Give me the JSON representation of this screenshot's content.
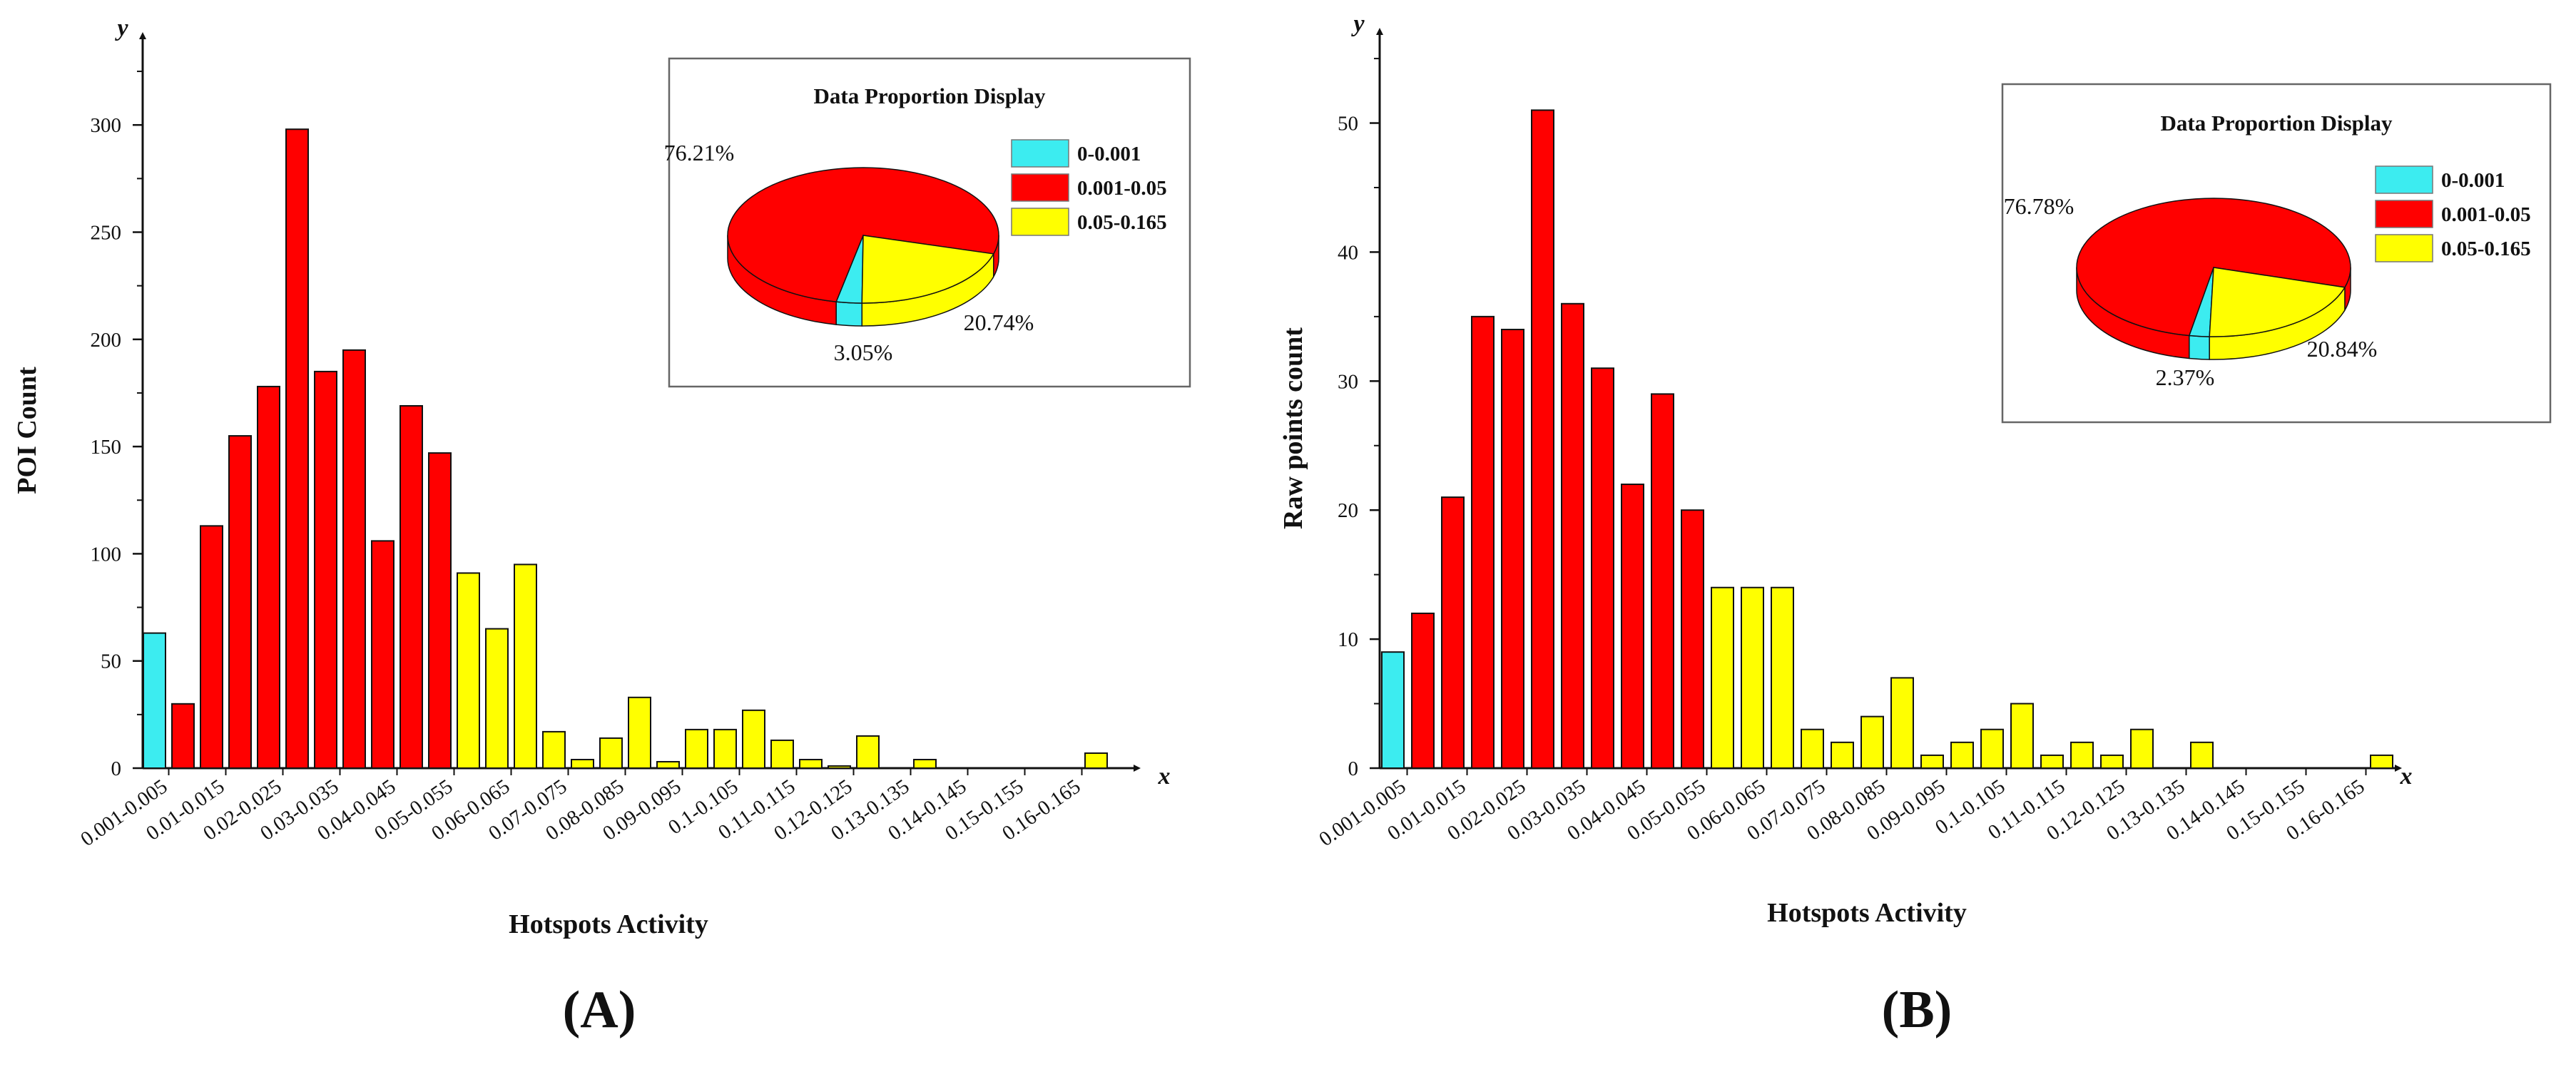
{
  "colors": {
    "range_low": "#3cecf0",
    "range_mid": "#ff0000",
    "range_high": "#ffff00",
    "axis": "#111111",
    "bar_stroke": "#111111"
  },
  "chart_data": [
    {
      "panel": "(A)",
      "type": "bar",
      "title": "",
      "xlabel": "Hotspots Activity",
      "ylabel": "POI Count",
      "x_axis_letter": "x",
      "y_axis_letter": "y",
      "ylim": [
        0,
        335
      ],
      "yticks": [
        0,
        50,
        100,
        150,
        200,
        250,
        300
      ],
      "xtick_labels": [
        "0.001-0.005",
        "0.01-0.015",
        "0.02-0.025",
        "0.03-0.035",
        "0.04-0.045",
        "0.05-0.055",
        "0.06-0.065",
        "0.07-0.075",
        "0.08-0.085",
        "0.09-0.095",
        "0.1-0.105",
        "0.11-0.115",
        "0.12-0.125",
        "0.13-0.135",
        "0.14-0.145",
        "0.15-0.155",
        "0.16-0.165"
      ],
      "values": [
        63,
        30,
        113,
        155,
        178,
        298,
        185,
        195,
        106,
        169,
        147,
        91,
        65,
        95,
        17,
        4,
        14,
        33,
        3,
        18,
        18,
        27,
        13,
        4,
        1,
        15,
        0,
        4,
        0,
        0,
        0,
        0,
        0,
        7
      ],
      "bar_groups": [
        "low",
        "mid",
        "mid",
        "mid",
        "mid",
        "mid",
        "mid",
        "mid",
        "mid",
        "mid",
        "mid",
        "high",
        "high",
        "high",
        "high",
        "high",
        "high",
        "high",
        "high",
        "high",
        "high",
        "high",
        "high",
        "high",
        "high",
        "high",
        "high",
        "high",
        "high",
        "high",
        "high",
        "high",
        "high",
        "high"
      ],
      "inset": {
        "type": "pie",
        "title": "Data Proportion Display",
        "labels": [
          "0-0.001",
          "0.001-0.05",
          "0.05-0.165"
        ],
        "values": [
          3.05,
          76.21,
          20.74
        ],
        "value_labels": [
          "3.05%",
          "76.21%",
          "20.74%"
        ]
      }
    },
    {
      "panel": "(B)",
      "type": "bar",
      "title": "",
      "xlabel": "Hotspots Activity",
      "ylabel": "Raw points count",
      "x_axis_letter": "x",
      "y_axis_letter": "y",
      "ylim": [
        0,
        56
      ],
      "yticks": [
        0,
        10,
        20,
        30,
        40,
        50
      ],
      "xtick_labels": [
        "0.001-0.005",
        "0.01-0.015",
        "0.02-0.025",
        "0.03-0.035",
        "0.04-0.045",
        "0.05-0.055",
        "0.06-0.065",
        "0.07-0.075",
        "0.08-0.085",
        "0.09-0.095",
        "0.1-0.105",
        "0.11-0.115",
        "0.12-0.125",
        "0.13-0.135",
        "0.14-0.145",
        "0.15-0.155",
        "0.16-0.165"
      ],
      "values": [
        9,
        12,
        21,
        35,
        34,
        51,
        36,
        31,
        22,
        29,
        20,
        14,
        14,
        14,
        3,
        2,
        4,
        7,
        1,
        2,
        3,
        5,
        1,
        2,
        1,
        3,
        0,
        2,
        0,
        0,
        0,
        0,
        0,
        1
      ],
      "bar_groups": [
        "low",
        "mid",
        "mid",
        "mid",
        "mid",
        "mid",
        "mid",
        "mid",
        "mid",
        "mid",
        "mid",
        "high",
        "high",
        "high",
        "high",
        "high",
        "high",
        "high",
        "high",
        "high",
        "high",
        "high",
        "high",
        "high",
        "high",
        "high",
        "high",
        "high",
        "high",
        "high",
        "high",
        "high",
        "high",
        "high"
      ],
      "inset": {
        "type": "pie",
        "title": "Data Proportion Display",
        "labels": [
          "0-0.001",
          "0.001-0.05",
          "0.05-0.165"
        ],
        "values": [
          2.37,
          76.78,
          20.84
        ],
        "value_labels": [
          "2.37%",
          "76.78%",
          "20.84%"
        ]
      }
    }
  ]
}
